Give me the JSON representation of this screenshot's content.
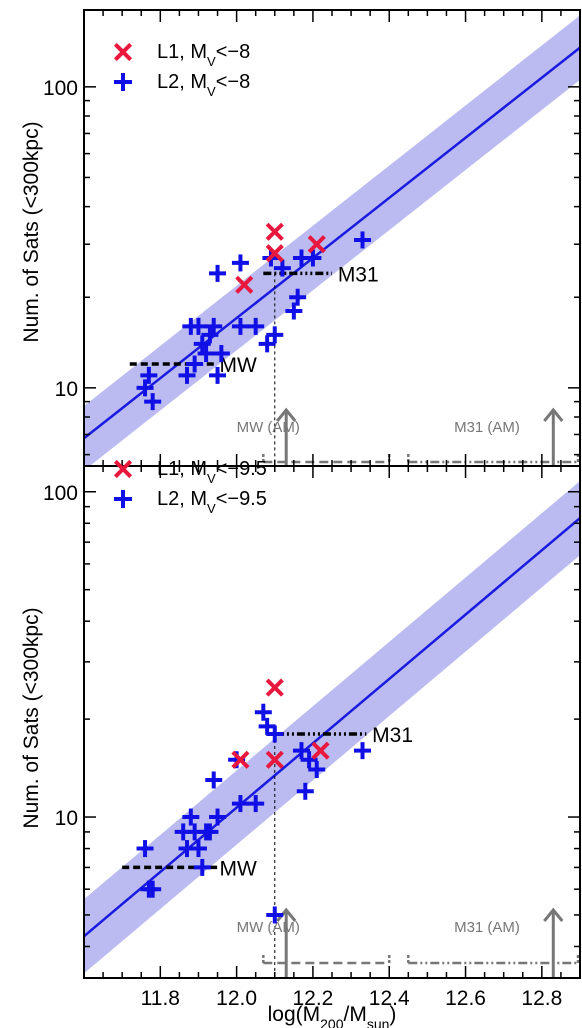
{
  "chart_data": [
    {
      "type": "scatter",
      "panel": "top",
      "ylabel": "Num. of Sats (<300kpc)",
      "xlabel": "",
      "xlim": [
        11.6,
        12.9
      ],
      "ylim": [
        5.5,
        180
      ],
      "yscale": "log",
      "yticks": [
        10,
        100
      ],
      "xticks": [
        11.8,
        12.0,
        12.2,
        12.4,
        12.6,
        12.8
      ],
      "legend_position": "top-left",
      "legend": [
        {
          "marker": "x",
          "color": "#e8173d",
          "label": "L1,  M",
          "sub": "V",
          "suffix": "<−8"
        },
        {
          "marker": "plus",
          "color": "#1010e6",
          "label": "L2,  M",
          "sub": "V",
          "suffix": "<−8"
        }
      ],
      "fit": {
        "color": "#1a1ae0",
        "band_color": "#b4b4f0",
        "points": [
          [
            11.6,
            6.8
          ],
          [
            12.9,
            135
          ]
        ],
        "band_factor": 1.28
      },
      "series": [
        {
          "marker": "plus",
          "color": "#1010e6",
          "points": [
            [
              11.76,
              10
            ],
            [
              11.77,
              11
            ],
            [
              11.78,
              9
            ],
            [
              11.87,
              11
            ],
            [
              11.88,
              16
            ],
            [
              11.89,
              12
            ],
            [
              11.9,
              16
            ],
            [
              11.91,
              14
            ],
            [
              11.92,
              13
            ],
            [
              11.93,
              15
            ],
            [
              11.94,
              16
            ],
            [
              11.95,
              11
            ],
            [
              11.95,
              24
            ],
            [
              11.96,
              13
            ],
            [
              12.01,
              16
            ],
            [
              12.01,
              26
            ],
            [
              12.05,
              16
            ],
            [
              12.08,
              14
            ],
            [
              12.09,
              27
            ],
            [
              12.1,
              15
            ],
            [
              12.12,
              25
            ],
            [
              12.15,
              18
            ],
            [
              12.16,
              20
            ],
            [
              12.17,
              27
            ],
            [
              12.2,
              27
            ],
            [
              12.33,
              31
            ]
          ]
        },
        {
          "marker": "x",
          "color": "#e8173d",
          "points": [
            [
              12.02,
              22
            ],
            [
              12.1,
              33
            ],
            [
              12.1,
              28
            ],
            [
              12.21,
              30
            ]
          ]
        }
      ],
      "annotations": [
        {
          "text": "MW",
          "x1": 11.72,
          "x2": 11.95,
          "y": 12,
          "label_x": 11.95
        },
        {
          "text": "M31",
          "x1": 12.07,
          "x2": 12.25,
          "y": 24,
          "label_x": 12.26,
          "drop_x": 12.1
        }
      ],
      "am_markers": [
        {
          "text": "MW (AM)",
          "range": [
            12.07,
            12.4
          ],
          "arrow_x": 12.13,
          "style": "dashed",
          "label_x": 12.0
        },
        {
          "text": "M31 (AM)",
          "range": [
            12.45,
            12.9
          ],
          "arrow_x": 12.83,
          "style": "dash-dot",
          "label_x": 12.57
        }
      ]
    },
    {
      "type": "scatter",
      "panel": "bottom",
      "ylabel": "Num. of Sats (<300kpc)",
      "xlabel": "log(M",
      "xlabel_sub1": "200",
      "xlabel_mid": "/M",
      "xlabel_sub2": "sun",
      "xlabel_end": ")",
      "xlim": [
        11.6,
        12.9
      ],
      "ylim": [
        3.2,
        120
      ],
      "yscale": "log",
      "yticks": [
        10,
        100
      ],
      "xticks": [
        11.8,
        12.0,
        12.2,
        12.4,
        12.6,
        12.8
      ],
      "tick_labels": [
        "11.8",
        "12.0",
        "12.2",
        "12.4",
        "12.6",
        "12.8"
      ],
      "legend_position": "top-left",
      "legend": [
        {
          "marker": "x",
          "color": "#e8173d",
          "label": "L1,  M",
          "sub": "V",
          "suffix": "<−9.5"
        },
        {
          "marker": "plus",
          "color": "#1010e6",
          "label": "L2,  M",
          "sub": "V",
          "suffix": "<−9.5"
        }
      ],
      "fit": {
        "color": "#1a1ae0",
        "band_color": "#b4b4f0",
        "points": [
          [
            11.6,
            4.3
          ],
          [
            12.9,
            83
          ]
        ],
        "band_factor": 1.3
      },
      "series": [
        {
          "marker": "plus",
          "color": "#1010e6",
          "points": [
            [
              11.76,
              8
            ],
            [
              11.77,
              6
            ],
            [
              11.78,
              6
            ],
            [
              11.86,
              9
            ],
            [
              11.87,
              8
            ],
            [
              11.88,
              10
            ],
            [
              11.89,
              9
            ],
            [
              11.9,
              8
            ],
            [
              11.91,
              7
            ],
            [
              11.92,
              9
            ],
            [
              11.93,
              9
            ],
            [
              11.94,
              13
            ],
            [
              11.95,
              10
            ],
            [
              12.0,
              15
            ],
            [
              12.01,
              11
            ],
            [
              12.05,
              11
            ],
            [
              12.07,
              21
            ],
            [
              12.08,
              19
            ],
            [
              12.1,
              18
            ],
            [
              12.1,
              5
            ],
            [
              12.17,
              16
            ],
            [
              12.18,
              12
            ],
            [
              12.19,
              15
            ],
            [
              12.21,
              14
            ],
            [
              12.33,
              16
            ]
          ]
        },
        {
          "marker": "x",
          "color": "#e8173d",
          "points": [
            [
              12.01,
              15
            ],
            [
              12.1,
              25
            ],
            [
              12.1,
              15
            ],
            [
              12.22,
              16
            ]
          ]
        }
      ],
      "annotations": [
        {
          "text": "MW",
          "x1": 11.7,
          "x2": 11.95,
          "y": 7,
          "label_x": 11.95
        },
        {
          "text": "M31",
          "x1": 12.09,
          "x2": 12.34,
          "y": 18,
          "label_x": 12.35,
          "drop_x": 12.1
        }
      ],
      "am_markers": [
        {
          "text": "MW (AM)",
          "range": [
            12.07,
            12.4
          ],
          "arrow_x": 12.13,
          "style": "dashed",
          "label_x": 12.0
        },
        {
          "text": "M31 (AM)",
          "range": [
            12.45,
            12.9
          ],
          "arrow_x": 12.83,
          "style": "dash-dot",
          "label_x": 12.57
        }
      ]
    }
  ]
}
